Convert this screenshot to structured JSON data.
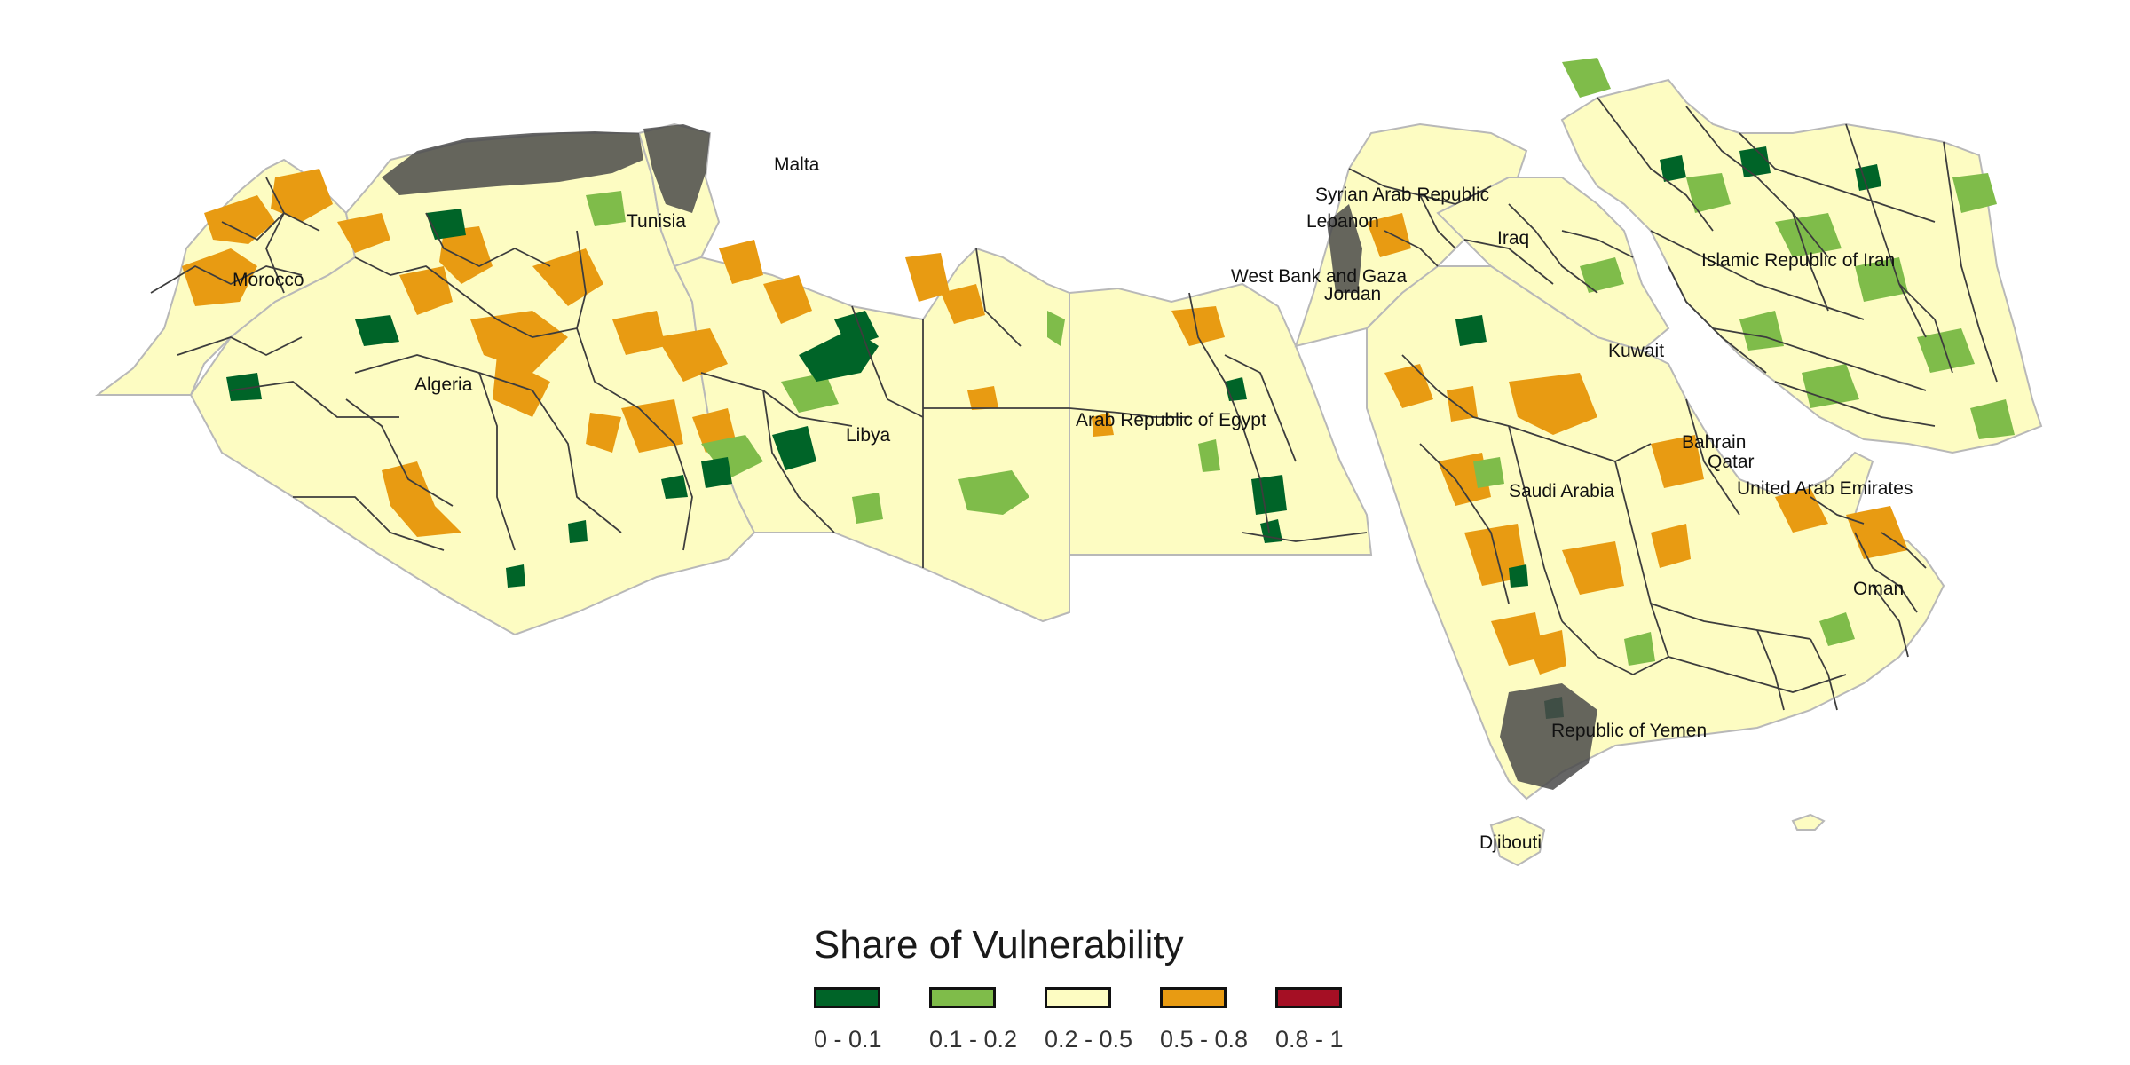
{
  "legend": {
    "title": "Share of Vulnerability",
    "items": [
      {
        "label": "0 - 0.1",
        "color": "#006428"
      },
      {
        "label": "0.1 - 0.2",
        "color": "#7fbc4a"
      },
      {
        "label": "0.2 - 0.5",
        "color": "#fdfcc2"
      },
      {
        "label": "0.5 - 0.8",
        "color": "#e89b12"
      },
      {
        "label": "0.8 - 1",
        "color": "#a50f24"
      }
    ]
  },
  "countries": [
    "Malta",
    "Tunisia",
    "Morocco",
    "Algeria",
    "Libya",
    "Arab Republic of Egypt",
    "Syrian Arab Republic",
    "Lebanon",
    "West Bank and Gaza",
    "Jordan",
    "Iraq",
    "Islamic Republic of Iran",
    "Kuwait",
    "Bahrain",
    "Qatar",
    "Saudi Arabia",
    "United Arab Emirates",
    "Oman",
    "Republic of Yemen",
    "Djibouti"
  ]
}
